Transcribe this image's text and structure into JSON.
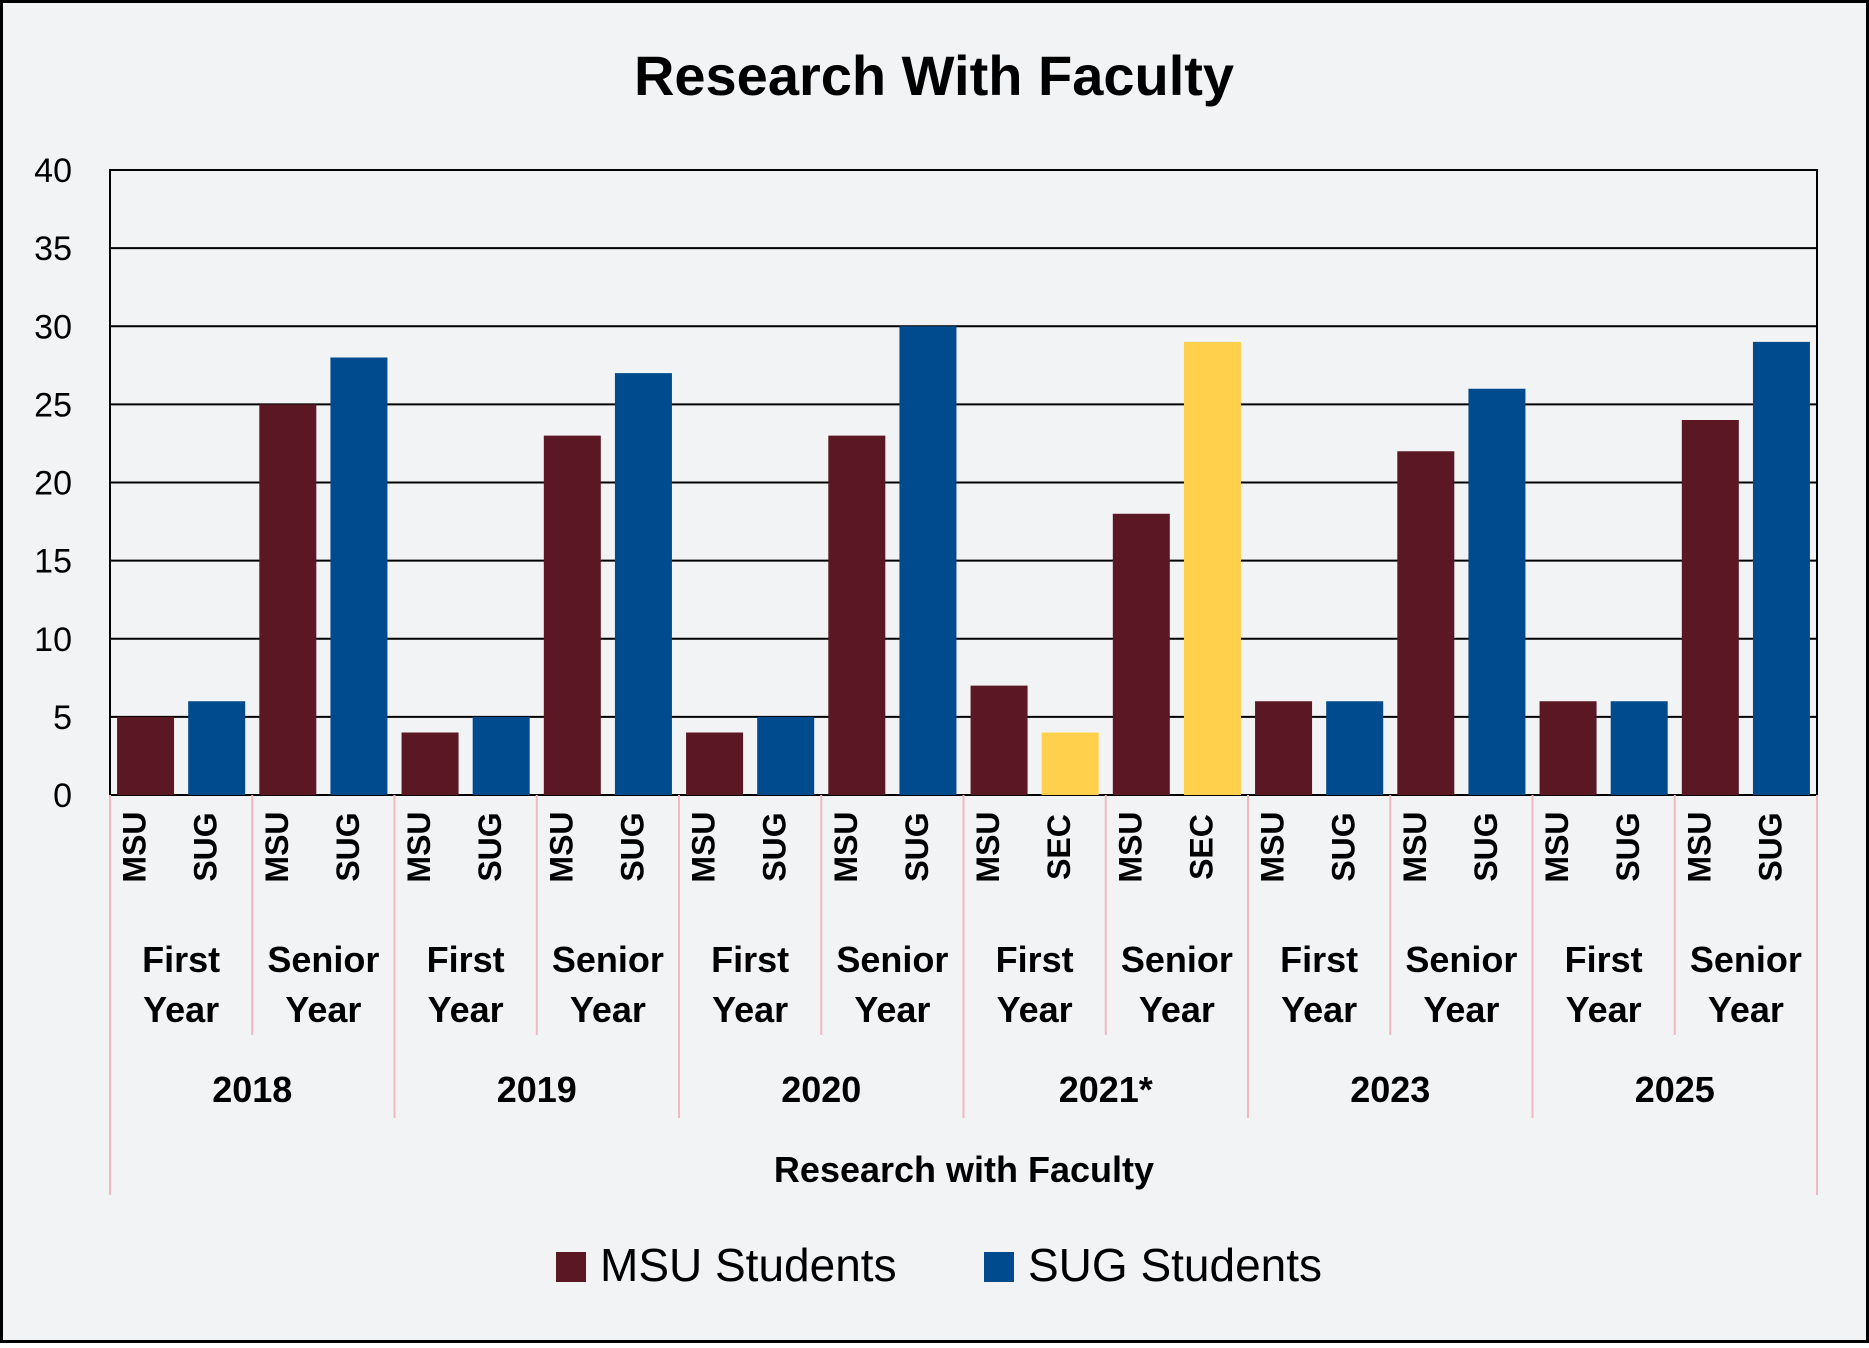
{
  "chart_data": {
    "type": "bar",
    "title": "Research With Faculty",
    "xlabel": "Research with Faculty",
    "ylabel": "",
    "ylim": [
      0,
      40
    ],
    "y_ticks": [
      "0",
      "5",
      "10",
      "15",
      "20",
      "25",
      "30",
      "35",
      "40"
    ],
    "grid": true,
    "legend_position": "bottom",
    "groups": [
      {
        "year": "2018",
        "levels": [
          {
            "label": [
              "First",
              "Year"
            ],
            "bars": [
              {
                "label": "MSU",
                "value": 5,
                "series": "msu"
              },
              {
                "label": "SUG",
                "value": 6,
                "series": "sug"
              }
            ]
          },
          {
            "label": [
              "Senior",
              "Year"
            ],
            "bars": [
              {
                "label": "MSU",
                "value": 25,
                "series": "msu"
              },
              {
                "label": "SUG",
                "value": 28,
                "series": "sug"
              }
            ]
          }
        ]
      },
      {
        "year": "2019",
        "levels": [
          {
            "label": [
              "First",
              "Year"
            ],
            "bars": [
              {
                "label": "MSU",
                "value": 4,
                "series": "msu"
              },
              {
                "label": "SUG",
                "value": 5,
                "series": "sug"
              }
            ]
          },
          {
            "label": [
              "Senior",
              "Year"
            ],
            "bars": [
              {
                "label": "MSU",
                "value": 23,
                "series": "msu"
              },
              {
                "label": "SUG",
                "value": 27,
                "series": "sug"
              }
            ]
          }
        ]
      },
      {
        "year": "2020",
        "levels": [
          {
            "label": [
              "First",
              "Year"
            ],
            "bars": [
              {
                "label": "MSU",
                "value": 4,
                "series": "msu"
              },
              {
                "label": "SUG",
                "value": 5,
                "series": "sug"
              }
            ]
          },
          {
            "label": [
              "Senior",
              "Year"
            ],
            "bars": [
              {
                "label": "MSU",
                "value": 23,
                "series": "msu"
              },
              {
                "label": "SUG",
                "value": 30,
                "series": "sug"
              }
            ]
          }
        ]
      },
      {
        "year": "2021*",
        "levels": [
          {
            "label": [
              "First",
              "Year"
            ],
            "bars": [
              {
                "label": "MSU",
                "value": 7,
                "series": "msu"
              },
              {
                "label": "SEC",
                "value": 4,
                "series": "sec"
              }
            ]
          },
          {
            "label": [
              "Senior",
              "Year"
            ],
            "bars": [
              {
                "label": "MSU",
                "value": 18,
                "series": "msu"
              },
              {
                "label": "SEC",
                "value": 29,
                "series": "sec"
              }
            ]
          }
        ]
      },
      {
        "year": "2023",
        "levels": [
          {
            "label": [
              "First",
              "Year"
            ],
            "bars": [
              {
                "label": "MSU",
                "value": 6,
                "series": "msu"
              },
              {
                "label": "SUG",
                "value": 6,
                "series": "sug"
              }
            ]
          },
          {
            "label": [
              "Senior",
              "Year"
            ],
            "bars": [
              {
                "label": "MSU",
                "value": 22,
                "series": "msu"
              },
              {
                "label": "SUG",
                "value": 26,
                "series": "sug"
              }
            ]
          }
        ]
      },
      {
        "year": "2025",
        "levels": [
          {
            "label": [
              "First",
              "Year"
            ],
            "bars": [
              {
                "label": "MSU",
                "value": 6,
                "series": "msu"
              },
              {
                "label": "SUG",
                "value": 6,
                "series": "sug"
              }
            ]
          },
          {
            "label": [
              "Senior",
              "Year"
            ],
            "bars": [
              {
                "label": "MSU",
                "value": 24,
                "series": "msu"
              },
              {
                "label": "SUG",
                "value": 29,
                "series": "sug"
              }
            ]
          }
        ]
      }
    ],
    "series_colors": {
      "msu": "#5b1724",
      "sug": "#004b8d",
      "sec": "#ffd04b"
    },
    "legend": [
      {
        "name": "MSU Students",
        "color": "#5b1724"
      },
      {
        "name": "SUG Students",
        "color": "#004b8d"
      }
    ],
    "colors": {
      "background": "#f2f3f5",
      "border": "#000000",
      "grid": "#000000",
      "category_divider": "#f2b8c0",
      "text": "#000000"
    }
  }
}
